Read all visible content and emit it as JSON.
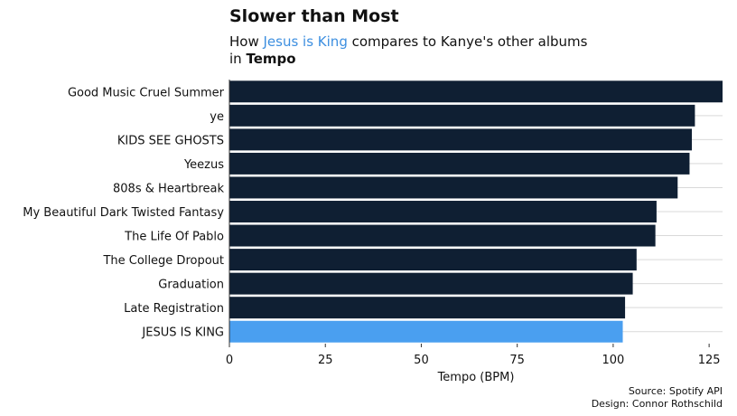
{
  "title": "Slower than Most",
  "subtitle": {
    "prefix": "How ",
    "highlight": "Jesus is King",
    "middle": " compares to Kanye's other albums",
    "line2_prefix": "in ",
    "line2_bold": "Tempo"
  },
  "caption": {
    "source": "Source: Spotify API",
    "design": "Design: Connor Rothschild"
  },
  "colors": {
    "bar": "#0f1f33",
    "highlight_bar": "#4a9ff0",
    "highlight_text": "#3d8fe0",
    "grid": "#d9d9d9"
  },
  "chart_data": {
    "type": "bar",
    "orientation": "horizontal",
    "categories": [
      "Good Music Cruel Summer",
      "ye",
      "KIDS SEE GHOSTS",
      "Yeezus",
      "808s & Heartbreak",
      "My Beautiful Dark Twisted Fantasy",
      "The Life Of Pablo",
      "The College Dropout",
      "Graduation",
      "Late Registration",
      "JESUS IS KING"
    ],
    "values": [
      128.5,
      121.3,
      120.5,
      119.9,
      116.8,
      111.3,
      111.0,
      106.1,
      105.1,
      103.1,
      102.5
    ],
    "highlight": "JESUS IS KING",
    "xlabel": "Tempo (BPM)",
    "ylabel": "",
    "xlim": [
      0,
      128.5
    ],
    "xticks": [
      0,
      25,
      50,
      75,
      100,
      125
    ],
    "grid": "horizontal"
  }
}
